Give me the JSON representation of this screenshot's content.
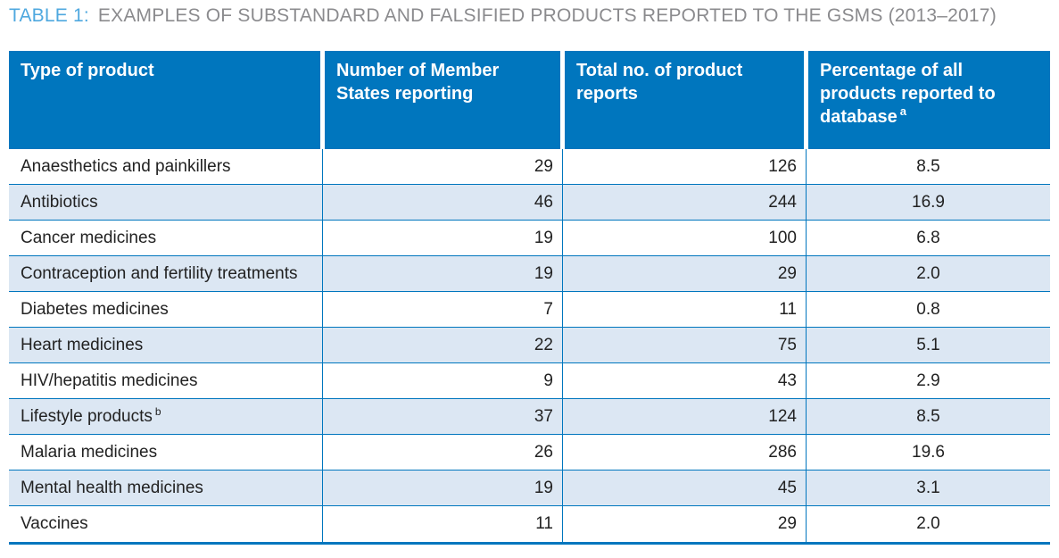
{
  "title": {
    "label": "TABLE 1:",
    "text": "EXAMPLES OF SUBSTANDARD AND FALSIFIED PRODUCTS REPORTED TO THE GSMS (2013–2017)"
  },
  "colors": {
    "header_blue": "#0076BE",
    "alt_row_blue": "#DCE7F3",
    "border_blue": "#0076BE",
    "title_accent_blue": "#4FA8DF",
    "title_gray": "#8B8B8E",
    "body_text": "#222222"
  },
  "table": {
    "columns": [
      {
        "label": "Type of product",
        "note": ""
      },
      {
        "label": "Number of Member States reporting",
        "note": ""
      },
      {
        "label": "Total no. of product reports",
        "note": ""
      },
      {
        "label": "Percentage of all products reported to database",
        "note": "a"
      }
    ],
    "rows": [
      {
        "product": "Anaesthetics and painkillers",
        "note": "",
        "member_states": "29",
        "reports": "126",
        "percentage": "8.5"
      },
      {
        "product": "Antibiotics",
        "note": "",
        "member_states": "46",
        "reports": "244",
        "percentage": "16.9"
      },
      {
        "product": "Cancer medicines",
        "note": "",
        "member_states": "19",
        "reports": "100",
        "percentage": "6.8"
      },
      {
        "product": "Contraception and fertility treatments",
        "note": "",
        "member_states": "19",
        "reports": "29",
        "percentage": "2.0"
      },
      {
        "product": "Diabetes medicines",
        "note": "",
        "member_states": "7",
        "reports": "11",
        "percentage": "0.8"
      },
      {
        "product": "Heart medicines",
        "note": "",
        "member_states": "22",
        "reports": "75",
        "percentage": "5.1"
      },
      {
        "product": "HIV/hepatitis medicines",
        "note": "",
        "member_states": "9",
        "reports": "43",
        "percentage": "2.9"
      },
      {
        "product": "Lifestyle products",
        "note": "b",
        "member_states": "37",
        "reports": "124",
        "percentage": "8.5"
      },
      {
        "product": "Malaria medicines",
        "note": "",
        "member_states": "26",
        "reports": "286",
        "percentage": "19.6"
      },
      {
        "product": "Mental health medicines",
        "note": "",
        "member_states": "19",
        "reports": "45",
        "percentage": "3.1"
      },
      {
        "product": "Vaccines",
        "note": "",
        "member_states": "11",
        "reports": "29",
        "percentage": "2.0"
      }
    ]
  }
}
